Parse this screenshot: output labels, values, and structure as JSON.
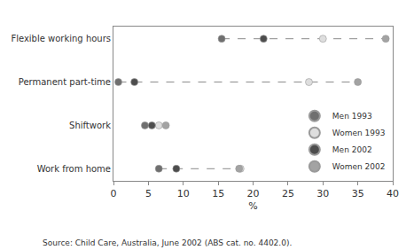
{
  "chart_data": {
    "type": "dot",
    "orientation": "horizontal",
    "categories": [
      "Flexible working hours",
      "Permanent part-time",
      "Shiftwork",
      "Work from home"
    ],
    "series": [
      {
        "name": "Men 1993",
        "color": "#6f6f6f",
        "values": [
          15.5,
          0.7,
          4.5,
          6.5
        ]
      },
      {
        "name": "Women 1993",
        "color": "#dedede",
        "values": [
          30,
          28,
          6.5,
          18.2
        ]
      },
      {
        "name": "Men 2002",
        "color": "#4d4d4d",
        "values": [
          21.5,
          3,
          5.5,
          9
        ]
      },
      {
        "name": "Women 2002",
        "color": "#a3a3a3",
        "values": [
          39,
          35,
          7.5,
          18
        ]
      }
    ],
    "xlabel": "%",
    "xlim": [
      0,
      40
    ],
    "xticks": [
      0,
      5,
      10,
      15,
      20,
      25,
      30,
      35,
      40
    ],
    "grid": false,
    "legend": "bottom right",
    "line_style": "dashed",
    "source": "Source: Child Care, Australia, June 2002 (ABS cat. no. 4402.0)."
  }
}
